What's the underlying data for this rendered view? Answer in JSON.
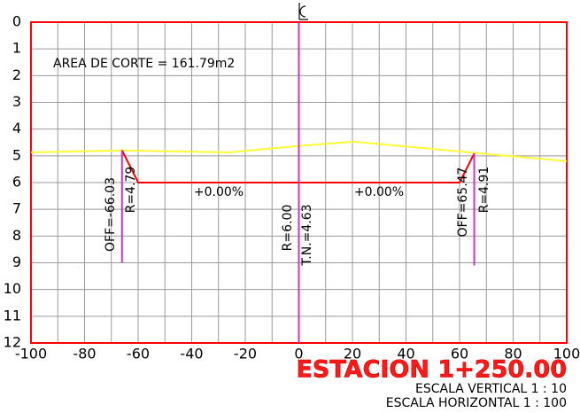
{
  "chart_data": {
    "type": "line",
    "title": "ESTACION 1+250.00",
    "subtitles": [
      "ESCALA VERTICAL 1 : 10",
      "ESCALA HORIZONTAL 1 : 100"
    ],
    "annotations": [
      "AREA DE CORTE = 161.79m2",
      "OFF=-66.03",
      "R=4.79",
      "R=6.00",
      "T.N.=4.63",
      "OFF=65.47",
      "R=4.91",
      "+0.00%",
      "+0.00%"
    ],
    "xlim": [
      -100,
      100
    ],
    "ylim": [
      12,
      0
    ],
    "xticks": [
      -100,
      -80,
      -60,
      -40,
      -20,
      0,
      20,
      40,
      60,
      80,
      100
    ],
    "yticks": [
      0,
      1,
      2,
      3,
      4,
      5,
      6,
      7,
      8,
      9,
      10,
      11,
      12
    ],
    "xgrid": [
      -90,
      -70,
      -50,
      -30,
      -10,
      10,
      30,
      50,
      70,
      90
    ],
    "grid": true,
    "series": [
      {
        "color": "#ffff33",
        "x": [
          -100,
          -65.3,
          -25.7,
          0,
          20.5,
          66.7,
          100
        ],
        "values": [
          4.87,
          4.8,
          4.87,
          4.63,
          4.47,
          4.9,
          5.2
        ]
      },
      {
        "color": "#ff0000",
        "x": [
          -66.03,
          -60,
          60,
          65.47
        ],
        "values": [
          4.79,
          6.0,
          6.0,
          4.91
        ]
      },
      {
        "color": "#cc33cc",
        "x": [
          -66.03,
          -66.03
        ],
        "values": [
          4.79,
          9.0
        ]
      },
      {
        "color": "#cc33cc",
        "x": [
          0,
          0
        ],
        "values": [
          0,
          12
        ]
      },
      {
        "color": "#cc33cc",
        "x": [
          65.47,
          65.47
        ],
        "values": [
          4.91,
          9.1
        ]
      }
    ]
  }
}
